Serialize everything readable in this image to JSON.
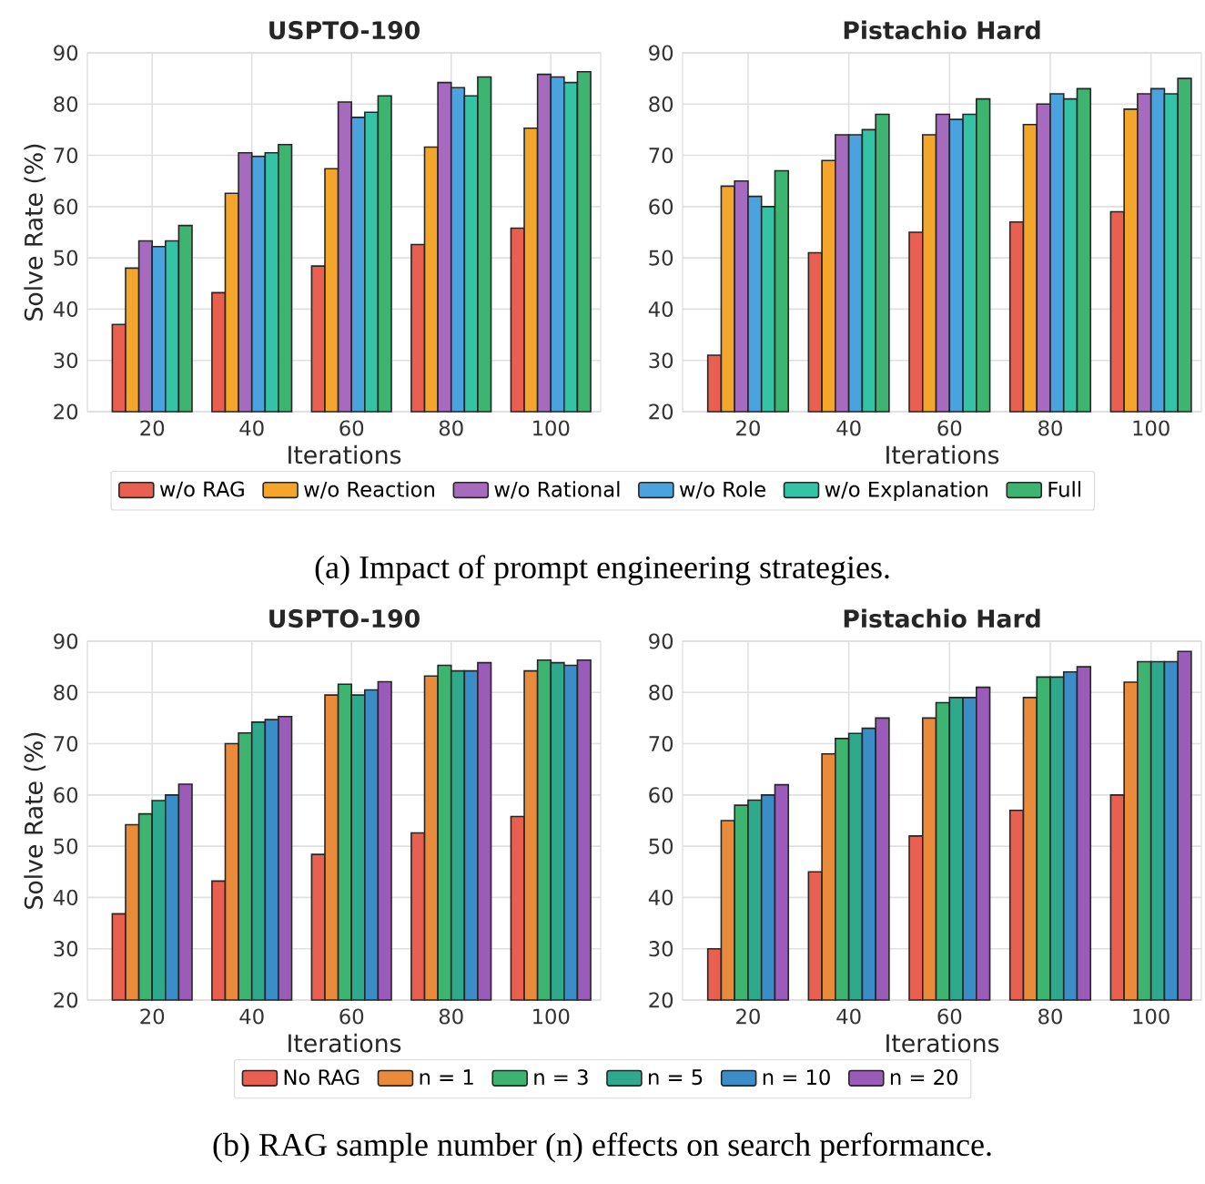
{
  "chart_data": [
    {
      "type": "bar",
      "title": "USPTO-190",
      "xlabel": "Iterations",
      "ylabel": "Solve Rate (%)",
      "categories": [
        "20",
        "40",
        "60",
        "80",
        "100"
      ],
      "ylim": [
        20,
        90
      ],
      "yticks": [
        20,
        30,
        40,
        50,
        60,
        70,
        80,
        90
      ],
      "grid": true,
      "legend": "bottom",
      "annotations": [
        "(a) Impact of prompt engineering strategies."
      ],
      "series": [
        {
          "name": "w/o RAG",
          "color": "#e95f50",
          "values": [
            37,
            43.2,
            48.4,
            52.6,
            55.8
          ]
        },
        {
          "name": "w/o Reaction",
          "color": "#f4a52b",
          "values": [
            48,
            62.6,
            67.4,
            71.6,
            75.3
          ]
        },
        {
          "name": "w/o Rational",
          "color": "#a66bbe",
          "values": [
            53.3,
            70.5,
            80.4,
            84.2,
            85.8
          ]
        },
        {
          "name": "w/o Role",
          "color": "#4aa3df",
          "values": [
            52.2,
            69.8,
            77.4,
            83.2,
            85.3
          ]
        },
        {
          "name": "w/o Explanation",
          "color": "#35c3a6",
          "values": [
            53.3,
            70.5,
            78.4,
            81.6,
            84.2
          ]
        },
        {
          "name": "Full",
          "color": "#3db570",
          "values": [
            56.3,
            72.1,
            81.6,
            85.3,
            86.3
          ]
        }
      ]
    },
    {
      "type": "bar",
      "title": "Pistachio Hard",
      "xlabel": "Iterations",
      "categories": [
        "20",
        "40",
        "60",
        "80",
        "100"
      ],
      "ylim": [
        20,
        90
      ],
      "yticks": [
        20,
        30,
        40,
        50,
        60,
        70,
        80,
        90
      ],
      "grid": true,
      "series": [
        {
          "color": "#e95f50",
          "values": [
            31,
            51,
            55,
            57,
            59
          ]
        },
        {
          "color": "#f4a52b",
          "values": [
            64,
            69,
            74,
            76,
            79
          ]
        },
        {
          "color": "#a66bbe",
          "values": [
            65,
            74,
            78,
            80,
            82
          ]
        },
        {
          "color": "#4aa3df",
          "values": [
            62,
            74,
            77,
            82,
            83
          ]
        },
        {
          "color": "#35c3a6",
          "values": [
            60,
            75,
            78,
            81,
            82
          ]
        },
        {
          "color": "#3db570",
          "values": [
            67,
            78,
            81,
            83,
            85
          ]
        }
      ]
    },
    {
      "type": "bar",
      "title": "USPTO-190",
      "xlabel": "Iterations",
      "ylabel": "Solve Rate (%)",
      "categories": [
        "20",
        "40",
        "60",
        "80",
        "100"
      ],
      "ylim": [
        20,
        90
      ],
      "yticks": [
        20,
        30,
        40,
        50,
        60,
        70,
        80,
        90
      ],
      "grid": true,
      "legend": "bottom",
      "annotations": [
        "(b) RAG sample number (n) effects on search performance."
      ],
      "series": [
        {
          "name": "No RAG",
          "color": "#e95f50",
          "values": [
            36.8,
            43.2,
            48.4,
            52.6,
            55.8
          ]
        },
        {
          "name": "n = 1",
          "color": "#e98b3b",
          "values": [
            54.2,
            70,
            79.5,
            83.2,
            84.2
          ]
        },
        {
          "name": "n = 3",
          "color": "#3db570",
          "values": [
            56.3,
            72.1,
            81.6,
            85.3,
            86.3
          ]
        },
        {
          "name": "n = 5",
          "color": "#2fa98c",
          "values": [
            58.9,
            74.2,
            79.5,
            84.2,
            85.8
          ]
        },
        {
          "name": "n = 10",
          "color": "#3a8dc6",
          "values": [
            60,
            74.7,
            80.5,
            84.2,
            85.3
          ]
        },
        {
          "name": "n = 20",
          "color": "#9b5bb8",
          "values": [
            62.1,
            75.3,
            82.1,
            85.8,
            86.3
          ]
        }
      ]
    },
    {
      "type": "bar",
      "title": "Pistachio Hard",
      "xlabel": "Iterations",
      "categories": [
        "20",
        "40",
        "60",
        "80",
        "100"
      ],
      "ylim": [
        20,
        90
      ],
      "yticks": [
        20,
        30,
        40,
        50,
        60,
        70,
        80,
        90
      ],
      "grid": true,
      "series": [
        {
          "color": "#e95f50",
          "values": [
            30,
            45,
            52,
            57,
            60
          ]
        },
        {
          "color": "#e98b3b",
          "values": [
            55,
            68,
            75,
            79,
            82
          ]
        },
        {
          "color": "#3db570",
          "values": [
            58,
            71,
            78,
            83,
            86
          ]
        },
        {
          "color": "#2fa98c",
          "values": [
            59,
            72,
            79,
            83,
            86
          ]
        },
        {
          "color": "#3a8dc6",
          "values": [
            60,
            73,
            79,
            84,
            86
          ]
        },
        {
          "color": "#9b5bb8",
          "values": [
            62,
            75,
            81,
            85,
            88
          ]
        }
      ]
    }
  ]
}
